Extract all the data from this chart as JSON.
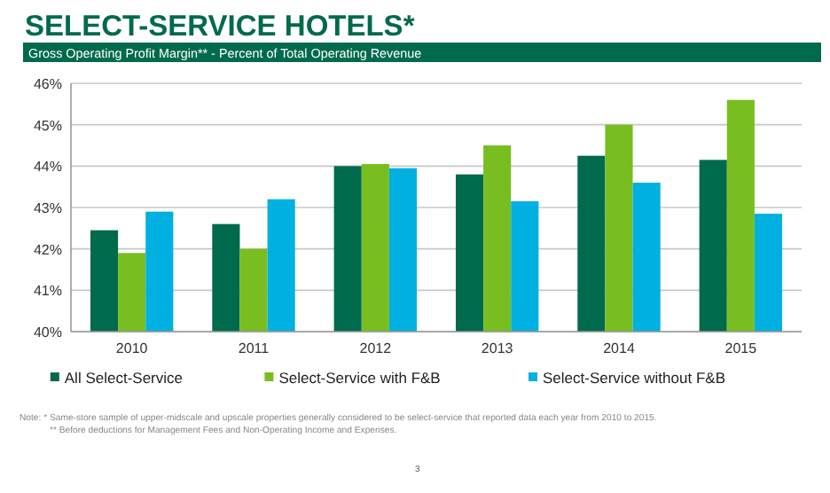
{
  "chart_data": {
    "type": "bar",
    "title": "SELECT-SERVICE HOTELS*",
    "subtitle": "Gross Operating Profit Margin** - Percent of Total Operating Revenue",
    "categories": [
      "2010",
      "2011",
      "2012",
      "2013",
      "2014",
      "2015"
    ],
    "series": [
      {
        "name": "All Select-Service",
        "color": "#006a4d",
        "values": [
          42.45,
          42.6,
          44.0,
          43.8,
          44.25,
          44.15
        ]
      },
      {
        "name": "Select-Service with F&B",
        "color": "#78be20",
        "values": [
          41.9,
          42.0,
          44.05,
          44.5,
          45.0,
          45.6
        ]
      },
      {
        "name": "Select-Service without F&B",
        "color": "#00b0e0",
        "values": [
          42.9,
          43.2,
          43.95,
          43.15,
          43.6,
          42.85
        ]
      }
    ],
    "ylim": [
      40,
      46
    ],
    "yticks": [
      {
        "value": 40,
        "label": "40%"
      },
      {
        "value": 41,
        "label": "41%"
      },
      {
        "value": 42,
        "label": "42%"
      },
      {
        "value": 43,
        "label": "43%"
      },
      {
        "value": 44,
        "label": "44%"
      },
      {
        "value": 45,
        "label": "45%"
      },
      {
        "value": 46,
        "label": "46%"
      }
    ],
    "grid": "y",
    "legend": "bottom",
    "annotations": [
      "Note: * Same-store sample of upper-midscale and upscale properties generally considered to be select-service that reported data each year from 2010 to 2015.",
      "** Before deductions for Management Fees and Non-Operating Income and Expenses.",
      "3"
    ]
  }
}
